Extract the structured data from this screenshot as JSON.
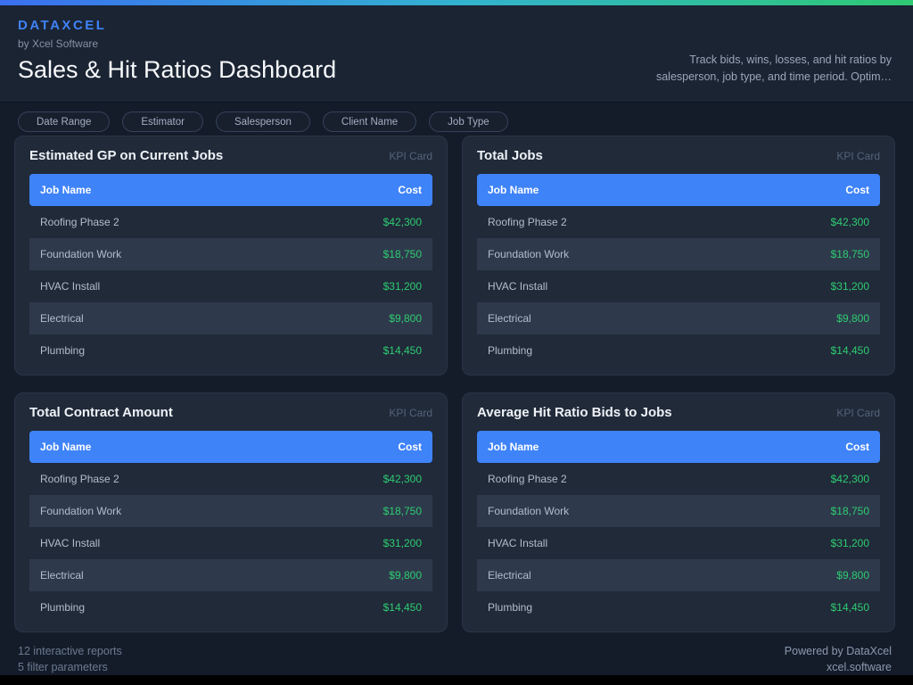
{
  "brand": {
    "name": "DATAXCEL",
    "tagline": "by Xcel Software"
  },
  "header": {
    "title": "Sales & Hit Ratios Dashboard",
    "description_line1": "Track bids, wins, losses, and hit ratios by",
    "description_line2": "salesperson, job type, and time period. Optim…"
  },
  "filters": [
    "Date Range",
    "Estimator",
    "Salesperson",
    "Client Name",
    "Job Type"
  ],
  "cards": [
    {
      "title": "Estimated GP on Current Jobs",
      "badge": "KPI Card",
      "columns": {
        "name": "Job Name",
        "cost": "Cost"
      },
      "rows": [
        {
          "name": "Roofing Phase 2",
          "cost": "$42,300"
        },
        {
          "name": "Foundation Work",
          "cost": "$18,750"
        },
        {
          "name": "HVAC Install",
          "cost": "$31,200"
        },
        {
          "name": "Electrical",
          "cost": "$9,800"
        },
        {
          "name": "Plumbing",
          "cost": "$14,450"
        }
      ]
    },
    {
      "title": "Total Jobs",
      "badge": "KPI Card",
      "columns": {
        "name": "Job Name",
        "cost": "Cost"
      },
      "rows": [
        {
          "name": "Roofing Phase 2",
          "cost": "$42,300"
        },
        {
          "name": "Foundation Work",
          "cost": "$18,750"
        },
        {
          "name": "HVAC Install",
          "cost": "$31,200"
        },
        {
          "name": "Electrical",
          "cost": "$9,800"
        },
        {
          "name": "Plumbing",
          "cost": "$14,450"
        }
      ]
    },
    {
      "title": "Total Contract Amount",
      "badge": "KPI Card",
      "columns": {
        "name": "Job Name",
        "cost": "Cost"
      },
      "rows": [
        {
          "name": "Roofing Phase 2",
          "cost": "$42,300"
        },
        {
          "name": "Foundation Work",
          "cost": "$18,750"
        },
        {
          "name": "HVAC Install",
          "cost": "$31,200"
        },
        {
          "name": "Electrical",
          "cost": "$9,800"
        },
        {
          "name": "Plumbing",
          "cost": "$14,450"
        }
      ]
    },
    {
      "title": "Average Hit Ratio Bids to Jobs",
      "badge": "KPI Card",
      "columns": {
        "name": "Job Name",
        "cost": "Cost"
      },
      "rows": [
        {
          "name": "Roofing Phase 2",
          "cost": "$42,300"
        },
        {
          "name": "Foundation Work",
          "cost": "$18,750"
        },
        {
          "name": "HVAC Install",
          "cost": "$31,200"
        },
        {
          "name": "Electrical",
          "cost": "$9,800"
        },
        {
          "name": "Plumbing",
          "cost": "$14,450"
        }
      ]
    }
  ],
  "footer": {
    "stat_line1": "12 interactive reports",
    "stat_line2": "5 filter parameters",
    "credit_line1": "Powered by DataXcel",
    "credit_line2": "xcel.software"
  },
  "colors": {
    "accent_blue": "#3f83f8",
    "cost_green": "#2ecc71",
    "gradient_left": "#3a6ff0",
    "gradient_mid": "#33b2d0",
    "gradient_right": "#2ec973"
  }
}
